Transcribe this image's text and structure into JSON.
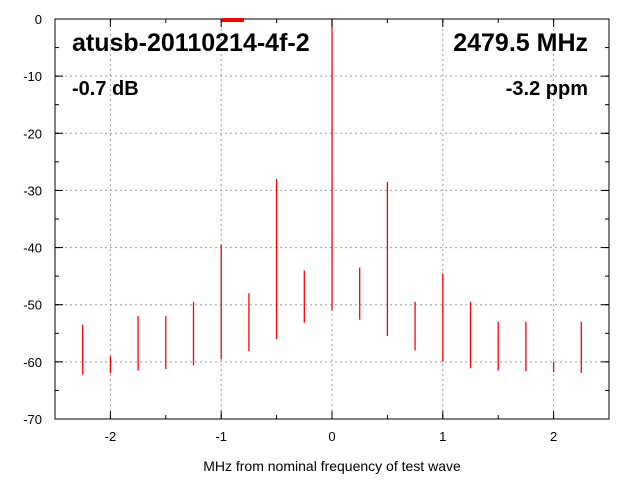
{
  "chart_data": {
    "type": "line",
    "title": "",
    "xlabel": "MHz from nominal frequency of test wave",
    "ylabel": "",
    "xlim": [
      -2.5,
      2.5
    ],
    "ylim": [
      -70,
      0
    ],
    "grid": true,
    "x_ticks": [
      -2,
      -1,
      0,
      1,
      2
    ],
    "y_ticks": [
      0,
      -10,
      -20,
      -30,
      -40,
      -50,
      -60,
      -70
    ],
    "annotations": {
      "device": "atusb-20110214-4f-2",
      "frequency": "2479.5 MHz",
      "level": "-0.7 dB",
      "offset": "-3.2 ppm"
    },
    "series": [
      {
        "color": "#ff0000",
        "noise_floor": [
          [
            -2.5,
            -66
          ],
          [
            -2.4,
            -64.5
          ],
          [
            -2.2,
            -63.5
          ],
          [
            -2.0,
            -63.5
          ],
          [
            -1.8,
            -63
          ],
          [
            -1.6,
            -63
          ],
          [
            -1.4,
            -62.5
          ],
          [
            -1.2,
            -62
          ],
          [
            -1.0,
            -61
          ],
          [
            -0.8,
            -60
          ],
          [
            -0.6,
            -58.5
          ],
          [
            -0.4,
            -56.5
          ],
          [
            -0.2,
            -54
          ],
          [
            -0.1,
            -53
          ],
          [
            0.0,
            -52.5
          ],
          [
            0.1,
            -53
          ],
          [
            0.2,
            -53.5
          ],
          [
            0.4,
            -56
          ],
          [
            0.6,
            -58
          ],
          [
            0.8,
            -60
          ],
          [
            1.0,
            -61.5
          ],
          [
            1.2,
            -62.5
          ],
          [
            1.4,
            -63
          ],
          [
            1.6,
            -63
          ],
          [
            1.8,
            -63.2
          ],
          [
            2.0,
            -63.3
          ],
          [
            2.2,
            -63.4
          ],
          [
            2.4,
            -63.6
          ],
          [
            2.5,
            -63.8
          ]
        ],
        "spurs": [
          [
            -2.25,
            -53.5
          ],
          [
            -2.0,
            -59
          ],
          [
            -1.75,
            -52
          ],
          [
            -1.5,
            -52
          ],
          [
            -1.25,
            -49.5
          ],
          [
            -1.0,
            -39.5
          ],
          [
            -0.75,
            -48
          ],
          [
            -0.5,
            -28
          ],
          [
            -0.25,
            -44
          ],
          [
            0.0,
            0
          ],
          [
            0.25,
            -43.5
          ],
          [
            0.5,
            -28.5
          ],
          [
            0.75,
            -49.5
          ],
          [
            1.0,
            -44.5
          ],
          [
            1.25,
            -49.5
          ],
          [
            1.5,
            -53
          ],
          [
            1.75,
            -53
          ],
          [
            2.0,
            -60
          ],
          [
            2.25,
            -53
          ]
        ]
      }
    ]
  }
}
